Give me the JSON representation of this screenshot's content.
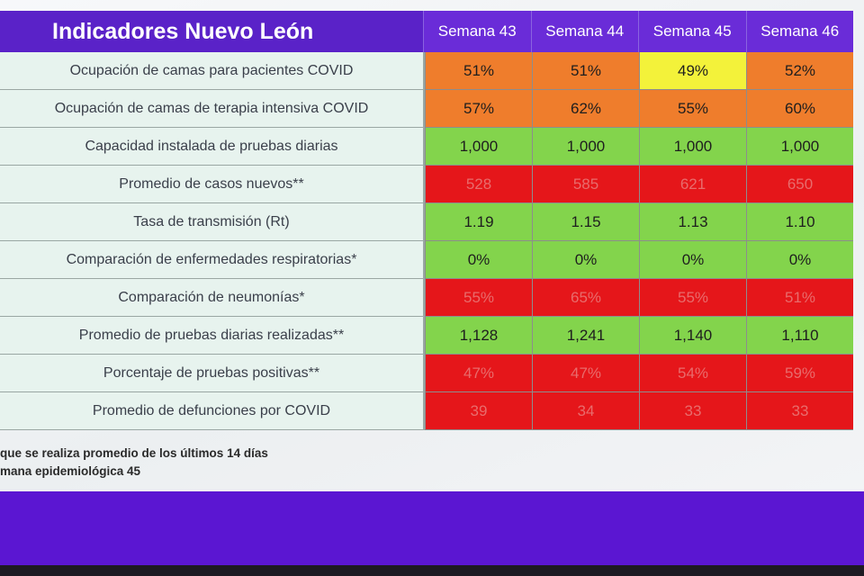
{
  "title": "Indicadores Nuevo León",
  "weeks": [
    "Semana 43",
    "Semana 44",
    "Semana 45",
    "Semana 46"
  ],
  "colors": {
    "header": "#6a2cd8",
    "label_bg": "#e7f3ee",
    "orange": "#ef7d2c",
    "yellow": "#f3f23a",
    "green": "#83d44c",
    "red": "#e5161a",
    "footer": "#5b16d2"
  },
  "rows": [
    {
      "label": "Ocupación de camas para pacientes COVID",
      "values": [
        "51%",
        "51%",
        "49%",
        "52%"
      ],
      "status": [
        "orange",
        "orange",
        "yellow",
        "orange"
      ]
    },
    {
      "label": "Ocupación de camas de terapia intensiva COVID",
      "values": [
        "57%",
        "62%",
        "55%",
        "60%"
      ],
      "status": [
        "orange",
        "orange",
        "orange",
        "orange"
      ]
    },
    {
      "label": "Capacidad instalada de pruebas diarias",
      "values": [
        "1,000",
        "1,000",
        "1,000",
        "1,000"
      ],
      "status": [
        "green",
        "green",
        "green",
        "green"
      ]
    },
    {
      "label": "Promedio de casos nuevos**",
      "values": [
        "528",
        "585",
        "621",
        "650"
      ],
      "status": [
        "red",
        "red",
        "red",
        "red"
      ]
    },
    {
      "label": "Tasa de transmisión (Rt)",
      "values": [
        "1.19",
        "1.15",
        "1.13",
        "1.10"
      ],
      "status": [
        "green",
        "green",
        "green",
        "green"
      ]
    },
    {
      "label": "Comparación de enfermedades respiratorias*",
      "values": [
        "0%",
        "0%",
        "0%",
        "0%"
      ],
      "status": [
        "green",
        "green",
        "green",
        "green"
      ]
    },
    {
      "label": "Comparación de neumonías*",
      "values": [
        "55%",
        "65%",
        "55%",
        "51%"
      ],
      "status": [
        "red",
        "red",
        "red",
        "red"
      ]
    },
    {
      "label": "Promedio de pruebas diarias realizadas**",
      "values": [
        "1,128",
        "1,241",
        "1,140",
        "1,110"
      ],
      "status": [
        "green",
        "green",
        "green",
        "green"
      ]
    },
    {
      "label": "Porcentaje de pruebas positivas**",
      "values": [
        "47%",
        "47%",
        "54%",
        "59%"
      ],
      "status": [
        "red",
        "red",
        "red",
        "red"
      ]
    },
    {
      "label": "Promedio de defunciones por COVID",
      "values": [
        "39",
        "34",
        "33",
        "33"
      ],
      "status": [
        "red",
        "red",
        "red",
        "red"
      ]
    }
  ],
  "notes": [
    "que se realiza promedio de los últimos 14 días",
    "mana epidemiológica 45"
  ]
}
